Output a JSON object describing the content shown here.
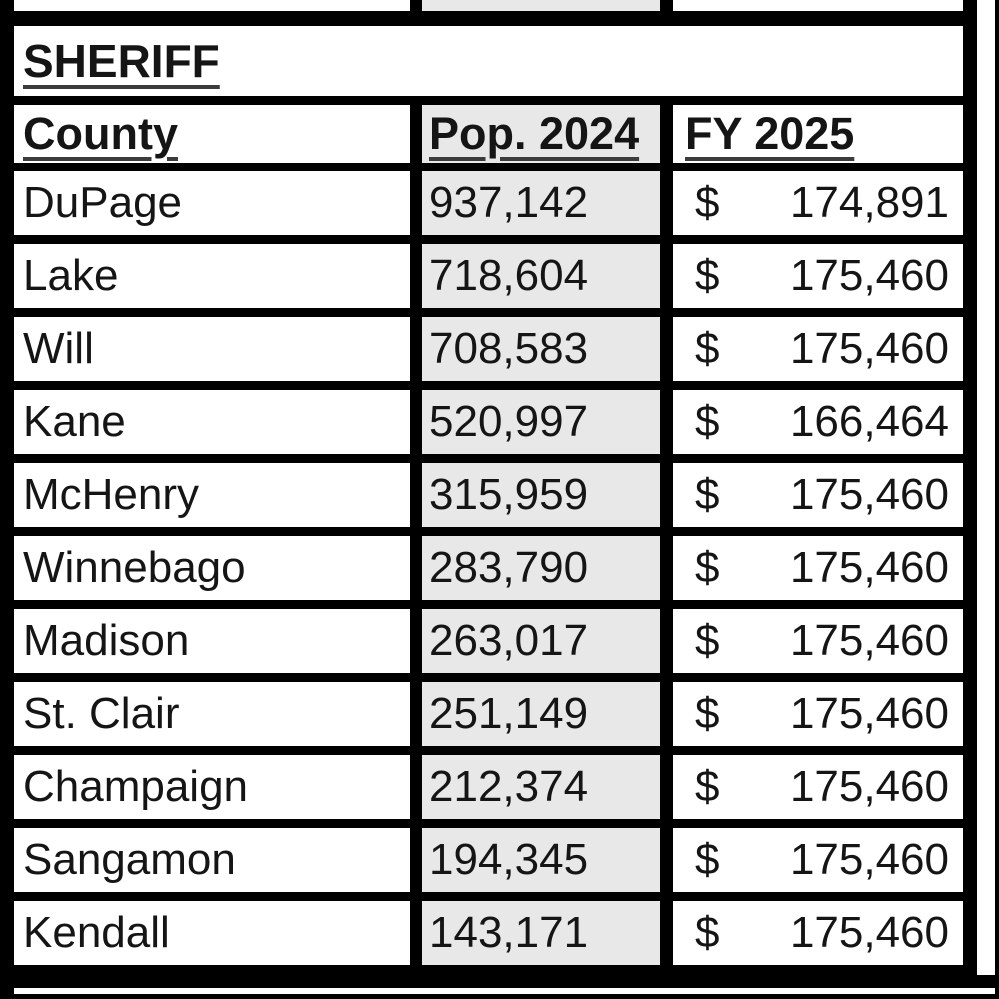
{
  "table": {
    "section_title": "SHERIFF",
    "headers": {
      "county": "County",
      "pop": "Pop. 2024",
      "fy": "FY 2025"
    },
    "rows": [
      {
        "county": "DuPage",
        "pop": "937,142",
        "dollar": "$",
        "amount": "174,891"
      },
      {
        "county": "Lake",
        "pop": "718,604",
        "dollar": "$",
        "amount": "175,460"
      },
      {
        "county": "Will",
        "pop": "708,583",
        "dollar": "$",
        "amount": "175,460"
      },
      {
        "county": "Kane",
        "pop": "520,997",
        "dollar": "$",
        "amount": "166,464"
      },
      {
        "county": "McHenry",
        "pop": "315,959",
        "dollar": "$",
        "amount": "175,460"
      },
      {
        "county": "Winnebago",
        "pop": "283,790",
        "dollar": "$",
        "amount": "175,460"
      },
      {
        "county": "Madison",
        "pop": "263,017",
        "dollar": "$",
        "amount": "175,460"
      },
      {
        "county": "St. Clair",
        "pop": "251,149",
        "dollar": "$",
        "amount": "175,460"
      },
      {
        "county": "Champaign",
        "pop": "212,374",
        "dollar": "$",
        "amount": "175,460"
      },
      {
        "county": "Sangamon",
        "pop": "194,345",
        "dollar": "$",
        "amount": "175,460"
      },
      {
        "county": "Kendall",
        "pop": "143,171",
        "dollar": "$",
        "amount": "175,460"
      }
    ]
  },
  "colors": {
    "grid": "#000000",
    "cell_bg": "#ffffff",
    "pop_column_bg": "#e8e8e8",
    "text": "#151515"
  }
}
